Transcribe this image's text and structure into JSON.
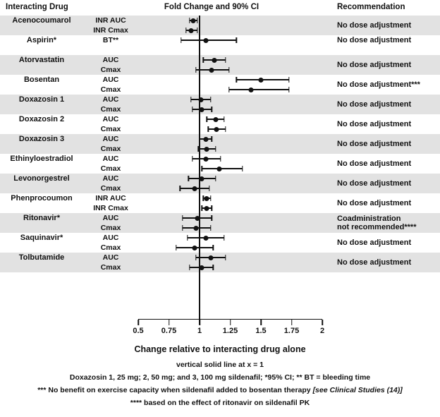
{
  "headers": {
    "interacting_drug": "Interacting Drug",
    "fold_change": "Fold Change and 90% CI",
    "recommendation": "Recommendation"
  },
  "footnotes": {
    "line1": "vertical solid line at x = 1",
    "line2": "Doxazosin 1, 25 mg; 2, 50 mg; and 3, 100 mg sildenafil; *95% CI; ** BT = bleeding time",
    "line3_main": "*** No benefit on exercise capacity when sildenafil added to bosentan therapy",
    "line3_ref": "[see Clinical Studies (14)]",
    "line4": "**** based on the effect of ritonavir on sildenafil PK"
  },
  "colors": {
    "band": "#e2e2e2",
    "ink": "#111111"
  },
  "chart_data": {
    "type": "forest",
    "title": "Fold Change and 90% CI",
    "xlabel": "Change relative to interacting drug alone",
    "xlim": [
      0.5,
      2
    ],
    "x_ticks": [
      0.5,
      0.75,
      1,
      1.25,
      1.5,
      1.75,
      2
    ],
    "x_tick_labels": [
      "0.5",
      "0.75",
      "1",
      "1.25",
      "1.5",
      "1.75",
      "2"
    ],
    "reference_line_x": 1,
    "ci_level": "90% CI",
    "groups": [
      {
        "drug": "Acenocoumarol",
        "shaded": true,
        "recommendation": "No dose adjustment",
        "rows": [
          {
            "measure": "INR AUC",
            "est": 0.95,
            "lo": 0.92,
            "hi": 0.98
          },
          {
            "measure": "INR Cmax",
            "est": 0.93,
            "lo": 0.89,
            "hi": 0.98
          }
        ]
      },
      {
        "drug": "Aspirin*",
        "shaded": false,
        "recommendation": "No dose adjustment",
        "rows": [
          {
            "measure": "BT**",
            "est": 1.05,
            "lo": 0.85,
            "hi": 1.3
          }
        ]
      },
      {
        "drug": "Atorvastatin",
        "shaded": true,
        "recommendation": "No dose adjustment",
        "rows": [
          {
            "measure": "AUC",
            "est": 1.12,
            "lo": 1.03,
            "hi": 1.21
          },
          {
            "measure": "Cmax",
            "est": 1.1,
            "lo": 0.97,
            "hi": 1.24
          }
        ]
      },
      {
        "drug": "Bosentan",
        "shaded": false,
        "recommendation": "No dose adjustment***",
        "rows": [
          {
            "measure": "AUC",
            "est": 1.5,
            "lo": 1.3,
            "hi": 1.73
          },
          {
            "measure": "Cmax",
            "est": 1.42,
            "lo": 1.24,
            "hi": 1.73
          }
        ]
      },
      {
        "drug": "Doxazosin 1",
        "shaded": true,
        "recommendation": "No dose adjustment",
        "rows": [
          {
            "measure": "AUC",
            "est": 1.01,
            "lo": 0.93,
            "hi": 1.09
          },
          {
            "measure": "Cmax",
            "est": 1.02,
            "lo": 0.94,
            "hi": 1.1
          }
        ]
      },
      {
        "drug": "Doxazosin 2",
        "shaded": false,
        "recommendation": "No dose adjustment",
        "rows": [
          {
            "measure": "AUC",
            "est": 1.13,
            "lo": 1.06,
            "hi": 1.2
          },
          {
            "measure": "Cmax",
            "est": 1.14,
            "lo": 1.07,
            "hi": 1.21
          }
        ]
      },
      {
        "drug": "Doxazosin 3",
        "shaded": true,
        "recommendation": "No dose adjustment",
        "rows": [
          {
            "measure": "AUC",
            "est": 1.05,
            "lo": 1.0,
            "hi": 1.1
          },
          {
            "measure": "Cmax",
            "est": 1.06,
            "lo": 0.99,
            "hi": 1.13
          }
        ]
      },
      {
        "drug": "Ethinyloestradiol",
        "shaded": false,
        "recommendation": "No dose adjustment",
        "rows": [
          {
            "measure": "AUC",
            "est": 1.05,
            "lo": 0.94,
            "hi": 1.17
          },
          {
            "measure": "Cmax",
            "est": 1.16,
            "lo": 1.02,
            "hi": 1.35
          }
        ]
      },
      {
        "drug": "Levonorgestrel",
        "shaded": true,
        "recommendation": "No dose adjustment",
        "rows": [
          {
            "measure": "AUC",
            "est": 1.02,
            "lo": 0.91,
            "hi": 1.13
          },
          {
            "measure": "Cmax",
            "est": 0.96,
            "lo": 0.84,
            "hi": 1.08
          }
        ]
      },
      {
        "drug": "Phenprocoumon",
        "shaded": false,
        "recommendation": "No dose adjustment",
        "rows": [
          {
            "measure": "INR AUC",
            "est": 1.06,
            "lo": 1.03,
            "hi": 1.09
          },
          {
            "measure": "INR Cmax",
            "est": 1.06,
            "lo": 1.02,
            "hi": 1.1
          }
        ]
      },
      {
        "drug": "Ritonavir*",
        "shaded": true,
        "recommendation": "Coadministration\nnot recommended****",
        "rows": [
          {
            "measure": "AUC",
            "est": 0.98,
            "lo": 0.86,
            "hi": 1.1
          },
          {
            "measure": "Cmax",
            "est": 0.97,
            "lo": 0.86,
            "hi": 1.09
          }
        ]
      },
      {
        "drug": "Saquinavir*",
        "shaded": false,
        "recommendation": "No dose adjustment",
        "rows": [
          {
            "measure": "AUC",
            "est": 1.05,
            "lo": 0.9,
            "hi": 1.2
          },
          {
            "measure": "Cmax",
            "est": 0.96,
            "lo": 0.81,
            "hi": 1.11
          }
        ]
      },
      {
        "drug": "Tolbutamide",
        "shaded": true,
        "recommendation": "No dose adjustment",
        "rows": [
          {
            "measure": "AUC",
            "est": 1.09,
            "lo": 0.97,
            "hi": 1.21
          },
          {
            "measure": "Cmax",
            "est": 1.02,
            "lo": 0.92,
            "hi": 1.11
          }
        ]
      }
    ]
  }
}
